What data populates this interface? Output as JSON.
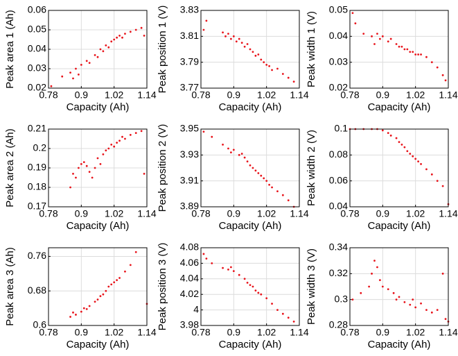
{
  "chart_data": [
    {
      "type": "scatter",
      "x_label": "Capacity (Ah)",
      "y_label": "Peak area 1 (Ah)",
      "color": "#e8141b",
      "grid": true,
      "xlim": [
        0.78,
        1.14
      ],
      "xticks": [
        0.78,
        0.9,
        1.02,
        1.14
      ],
      "ylim": [
        0.02,
        0.06
      ],
      "yticks": [
        0.02,
        0.03,
        0.04,
        0.05,
        0.06
      ],
      "x": [
        0.79,
        0.83,
        0.86,
        0.87,
        0.88,
        0.89,
        0.9,
        0.92,
        0.93,
        0.95,
        0.96,
        0.97,
        0.98,
        0.99,
        1.0,
        1.01,
        1.02,
        1.03,
        1.04,
        1.05,
        1.06,
        1.08,
        1.1,
        1.12,
        1.13
      ],
      "values": [
        0.021,
        0.026,
        0.028,
        0.025,
        0.03,
        0.027,
        0.032,
        0.034,
        0.033,
        0.037,
        0.036,
        0.04,
        0.039,
        0.042,
        0.041,
        0.044,
        0.045,
        0.046,
        0.047,
        0.046,
        0.048,
        0.049,
        0.05,
        0.051,
        0.047
      ]
    },
    {
      "type": "scatter",
      "x_label": "Capacity (Ah)",
      "y_label": "Peak position 1 (V)",
      "color": "#e8141b",
      "grid": true,
      "xlim": [
        0.78,
        1.14
      ],
      "xticks": [
        0.78,
        0.9,
        1.02,
        1.14
      ],
      "ylim": [
        3.77,
        3.83
      ],
      "yticks": [
        3.77,
        3.79,
        3.81,
        3.83
      ],
      "x": [
        0.79,
        0.8,
        0.86,
        0.87,
        0.88,
        0.89,
        0.9,
        0.91,
        0.92,
        0.93,
        0.94,
        0.95,
        0.96,
        0.97,
        0.98,
        0.99,
        1.0,
        1.01,
        1.02,
        1.03,
        1.04,
        1.06,
        1.08,
        1.1,
        1.12
      ],
      "values": [
        3.815,
        3.822,
        3.813,
        3.81,
        3.812,
        3.808,
        3.81,
        3.806,
        3.808,
        3.805,
        3.802,
        3.804,
        3.8,
        3.798,
        3.795,
        3.796,
        3.792,
        3.79,
        3.788,
        3.787,
        3.784,
        3.785,
        3.781,
        3.778,
        3.775
      ]
    },
    {
      "type": "scatter",
      "x_label": "Capacity (Ah)",
      "y_label": "Peak width 1 (V)",
      "color": "#e8141b",
      "grid": true,
      "xlim": [
        0.78,
        1.14
      ],
      "xticks": [
        0.78,
        0.9,
        1.02,
        1.14
      ],
      "ylim": [
        0.02,
        0.05
      ],
      "yticks": [
        0.02,
        0.03,
        0.04,
        0.05
      ],
      "x": [
        0.79,
        0.8,
        0.83,
        0.86,
        0.87,
        0.88,
        0.89,
        0.9,
        0.92,
        0.93,
        0.95,
        0.96,
        0.97,
        0.98,
        0.99,
        1.0,
        1.01,
        1.02,
        1.03,
        1.04,
        1.06,
        1.08,
        1.1,
        1.12,
        1.13
      ],
      "values": [
        0.049,
        0.045,
        0.041,
        0.04,
        0.037,
        0.041,
        0.039,
        0.04,
        0.038,
        0.039,
        0.037,
        0.036,
        0.036,
        0.035,
        0.035,
        0.034,
        0.034,
        0.033,
        0.033,
        0.033,
        0.032,
        0.03,
        0.028,
        0.025,
        0.023
      ]
    },
    {
      "type": "scatter",
      "x_label": "Capacity (Ah)",
      "y_label": "Peak area 2 (Ah)",
      "color": "#e8141b",
      "grid": true,
      "xlim": [
        0.78,
        1.14
      ],
      "xticks": [
        0.78,
        0.9,
        1.02,
        1.14
      ],
      "ylim": [
        0.17,
        0.21
      ],
      "yticks": [
        0.17,
        0.18,
        0.19,
        0.2,
        0.21
      ],
      "x": [
        0.86,
        0.87,
        0.88,
        0.89,
        0.9,
        0.91,
        0.92,
        0.93,
        0.94,
        0.95,
        0.96,
        0.97,
        0.98,
        0.99,
        1.0,
        1.01,
        1.02,
        1.03,
        1.04,
        1.05,
        1.06,
        1.08,
        1.1,
        1.12,
        1.13
      ],
      "values": [
        0.18,
        0.187,
        0.185,
        0.19,
        0.192,
        0.193,
        0.191,
        0.188,
        0.185,
        0.19,
        0.195,
        0.192,
        0.197,
        0.199,
        0.2,
        0.202,
        0.201,
        0.203,
        0.204,
        0.206,
        0.205,
        0.207,
        0.208,
        0.209,
        0.187
      ]
    },
    {
      "type": "scatter",
      "x_label": "Capacity (Ah)",
      "y_label": "Peak position 2 (V)",
      "color": "#e8141b",
      "grid": true,
      "xlim": [
        0.78,
        1.14
      ],
      "xticks": [
        0.78,
        0.9,
        1.02,
        1.14
      ],
      "ylim": [
        3.89,
        3.95
      ],
      "yticks": [
        3.89,
        3.91,
        3.93,
        3.95
      ],
      "x": [
        0.79,
        0.82,
        0.86,
        0.88,
        0.89,
        0.9,
        0.92,
        0.93,
        0.94,
        0.95,
        0.96,
        0.97,
        0.98,
        0.99,
        1.0,
        1.01,
        1.02,
        1.03,
        1.04,
        1.06,
        1.08,
        1.1,
        1.12
      ],
      "values": [
        3.948,
        3.944,
        3.938,
        3.935,
        3.932,
        3.934,
        3.93,
        3.931,
        3.928,
        3.925,
        3.922,
        3.92,
        3.918,
        3.916,
        3.914,
        3.912,
        3.91,
        3.907,
        3.905,
        3.902,
        3.899,
        3.895,
        3.89
      ]
    },
    {
      "type": "scatter",
      "x_label": "Capacity (Ah)",
      "y_label": "Peak width 2 (V)",
      "color": "#e8141b",
      "grid": true,
      "xlim": [
        0.78,
        1.14
      ],
      "xticks": [
        0.78,
        0.9,
        1.02,
        1.14
      ],
      "ylim": [
        0.04,
        0.1
      ],
      "yticks": [
        0.04,
        0.06,
        0.08,
        0.1
      ],
      "x": [
        0.78,
        0.8,
        0.83,
        0.86,
        0.88,
        0.9,
        0.92,
        0.93,
        0.95,
        0.96,
        0.97,
        0.98,
        0.99,
        1.0,
        1.01,
        1.02,
        1.03,
        1.04,
        1.06,
        1.08,
        1.1,
        1.12,
        1.14
      ],
      "values": [
        0.1,
        0.1,
        0.1,
        0.1,
        0.1,
        0.099,
        0.097,
        0.095,
        0.093,
        0.09,
        0.088,
        0.086,
        0.083,
        0.081,
        0.079,
        0.077,
        0.075,
        0.073,
        0.069,
        0.065,
        0.06,
        0.056,
        0.042
      ]
    },
    {
      "type": "scatter",
      "x_label": "Capacity (Ah)",
      "y_label": "Peak area 3 (Ah)",
      "color": "#e8141b",
      "grid": true,
      "xlim": [
        0.78,
        1.14
      ],
      "xticks": [
        0.78,
        0.9,
        1.02,
        1.14
      ],
      "ylim": [
        0.6,
        0.78
      ],
      "yticks": [
        0.6,
        0.68,
        0.76
      ],
      "x": [
        0.86,
        0.87,
        0.88,
        0.9,
        0.91,
        0.92,
        0.93,
        0.95,
        0.96,
        0.97,
        0.98,
        0.99,
        1.0,
        1.01,
        1.02,
        1.03,
        1.04,
        1.06,
        1.08,
        1.1,
        1.14
      ],
      "values": [
        0.62,
        0.63,
        0.625,
        0.632,
        0.64,
        0.638,
        0.645,
        0.655,
        0.66,
        0.668,
        0.672,
        0.68,
        0.69,
        0.695,
        0.7,
        0.705,
        0.71,
        0.725,
        0.74,
        0.77,
        0.65
      ]
    },
    {
      "type": "scatter",
      "x_label": "Capacity (Ah)",
      "y_label": "Peak position 3 (V)",
      "color": "#e8141b",
      "grid": true,
      "xlim": [
        0.78,
        1.14
      ],
      "xticks": [
        0.78,
        0.9,
        1.02,
        1.14
      ],
      "ylim": [
        3.98,
        4.08
      ],
      "yticks": [
        3.98,
        4,
        4.02,
        4.04,
        4.06,
        4.08
      ],
      "x": [
        0.79,
        0.8,
        0.82,
        0.86,
        0.88,
        0.89,
        0.9,
        0.92,
        0.94,
        0.95,
        0.96,
        0.97,
        0.98,
        0.99,
        1.0,
        1.02,
        1.04,
        1.06,
        1.08,
        1.1,
        1.12
      ],
      "values": [
        4.072,
        4.066,
        4.06,
        4.054,
        4.052,
        4.055,
        4.05,
        4.045,
        4.04,
        4.035,
        4.032,
        4.03,
        4.025,
        4.022,
        4.02,
        4.015,
        4.008,
        4.0,
        3.995,
        3.99,
        3.985
      ]
    },
    {
      "type": "scatter",
      "x_label": "Capacity (Ah)",
      "y_label": "Peak width 3 (V)",
      "color": "#e8141b",
      "grid": true,
      "xlim": [
        0.78,
        1.14
      ],
      "xticks": [
        0.78,
        0.9,
        1.02,
        1.14
      ],
      "ylim": [
        0.28,
        0.34
      ],
      "yticks": [
        0.28,
        0.3,
        0.32,
        0.34
      ],
      "x": [
        0.79,
        0.82,
        0.85,
        0.86,
        0.87,
        0.88,
        0.89,
        0.9,
        0.92,
        0.94,
        0.95,
        0.96,
        0.98,
        1.0,
        1.01,
        1.02,
        1.04,
        1.06,
        1.08,
        1.1,
        1.12,
        1.13,
        1.14
      ],
      "values": [
        0.3,
        0.305,
        0.31,
        0.32,
        0.33,
        0.325,
        0.315,
        0.31,
        0.308,
        0.305,
        0.3,
        0.302,
        0.298,
        0.296,
        0.3,
        0.294,
        0.297,
        0.292,
        0.29,
        0.292,
        0.32,
        0.285,
        0.283
      ]
    }
  ]
}
